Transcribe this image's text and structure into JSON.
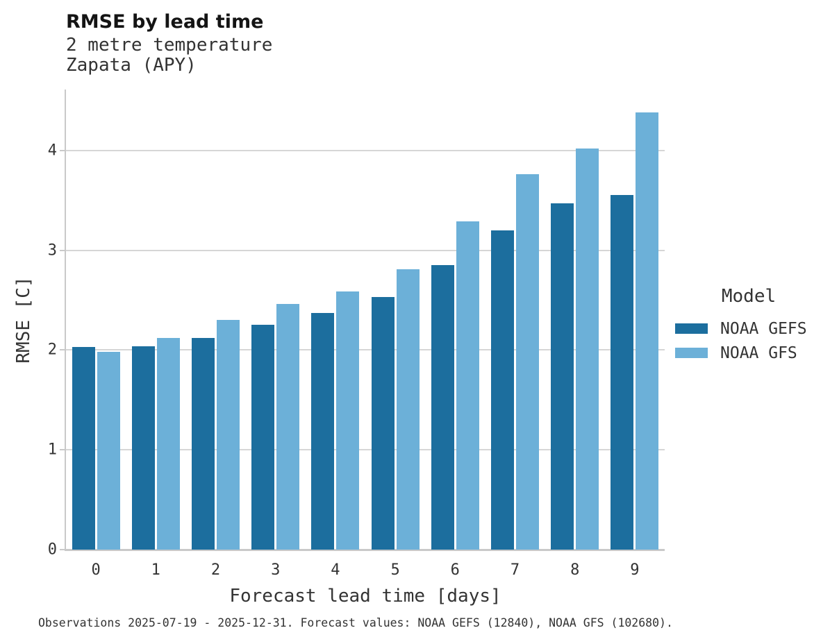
{
  "header": {
    "title": "RMSE by lead time",
    "subtitle_line1": "2 metre temperature",
    "subtitle_line2": "Zapata (APY)"
  },
  "chart_data": {
    "type": "bar",
    "title": "RMSE by lead time",
    "subtitle": "2 metre temperature / Zapata (APY)",
    "categories": [
      "0",
      "1",
      "2",
      "3",
      "4",
      "5",
      "6",
      "7",
      "8",
      "9"
    ],
    "series": [
      {
        "name": "NOAA GEFS",
        "color": "#1C6E9E",
        "values": [
          2.03,
          2.04,
          2.12,
          2.25,
          2.37,
          2.53,
          2.85,
          3.2,
          3.47,
          3.55
        ]
      },
      {
        "name": "NOAA GFS",
        "color": "#6CB0D8",
        "values": [
          1.98,
          2.12,
          2.3,
          2.46,
          2.59,
          2.81,
          3.29,
          3.76,
          4.02,
          4.38
        ]
      }
    ],
    "xlabel": "Forecast lead time [days]",
    "ylabel": "RMSE [C]",
    "ylim": [
      0,
      4.61
    ],
    "yticks": [
      0,
      1,
      2,
      3,
      4
    ],
    "grid": "horizontal",
    "legend_title": "Model",
    "legend_position": "right",
    "axis_color": "#c9c9c9",
    "grid_color": "#d6d6d6"
  },
  "footer": {
    "caption": "Observations 2025-07-19 - 2025-12-31. Forecast values: NOAA GEFS (12840), NOAA GFS (102680)."
  }
}
